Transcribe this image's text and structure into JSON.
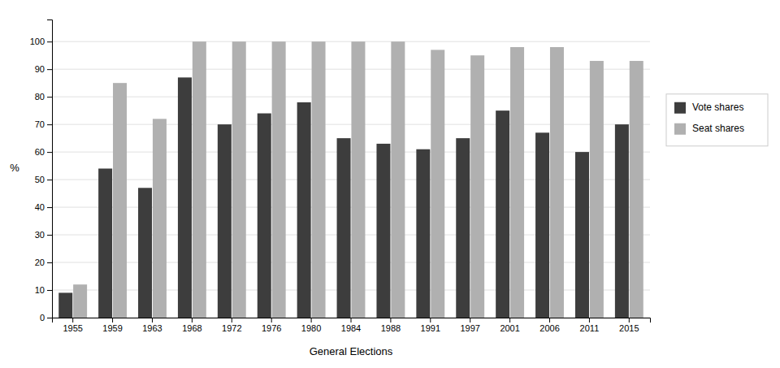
{
  "chart_data": {
    "type": "bar",
    "xlabel": "General Elections",
    "ylabel": "%",
    "categories": [
      "1955",
      "1959",
      "1963",
      "1968",
      "1972",
      "1976",
      "1980",
      "1984",
      "1988",
      "1991",
      "1997",
      "2001",
      "2006",
      "2011",
      "2015"
    ],
    "series": [
      {
        "name": "Vote shares",
        "color": "#3d3d3d",
        "values": [
          9,
          54,
          47,
          87,
          70,
          74,
          78,
          65,
          63,
          61,
          65,
          75,
          67,
          60,
          70
        ]
      },
      {
        "name": "Seat shares",
        "color": "#b0b0b0",
        "values": [
          12,
          85,
          72,
          100,
          100,
          100,
          100,
          100,
          100,
          97,
          95,
          98,
          98,
          93,
          93
        ]
      }
    ],
    "ylim": [
      0,
      108
    ],
    "yticks": [
      0,
      10,
      20,
      30,
      40,
      50,
      60,
      70,
      80,
      90,
      100
    ],
    "grid": true,
    "legend": "right"
  }
}
